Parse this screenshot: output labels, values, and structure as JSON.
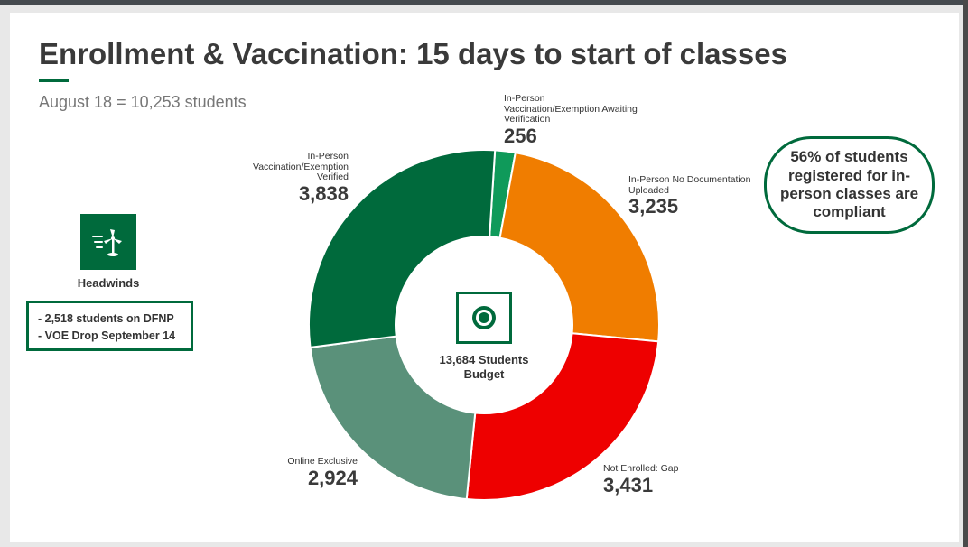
{
  "title": "Enrollment & Vaccination: 15 days to start of classes",
  "subtitle": "August 18 = 10,253 students",
  "headwinds": {
    "label": "Headwinds",
    "icon": "wind-turbine-icon",
    "items": [
      "- 2,518 students on DFNP",
      "- VOE Drop September 14"
    ]
  },
  "callout": "56% of students registered for in-person classes are compliant",
  "center": {
    "icon": "target-icon",
    "text": "13,684 Students Budget"
  },
  "colors": {
    "brand": "#006a3c",
    "verified": "#006a3c",
    "awaiting": "#0f9a5a",
    "no_docs": "#f07d00",
    "not_enrolled": "#ee0000",
    "online": "#5a917a"
  },
  "chart_data": {
    "type": "pie",
    "title": "",
    "center_label": "13,684 Students Budget",
    "slices": [
      {
        "label": "In-Person Vaccination/Exemption Awaiting Verification",
        "value": 256,
        "display": "256"
      },
      {
        "label": "In-Person No Documentation Uploaded",
        "value": 3235,
        "display": "3,235"
      },
      {
        "label": "Not Enrolled: Gap",
        "value": 3431,
        "display": "3,431"
      },
      {
        "label": "Online Exclusive",
        "value": 2924,
        "display": "2,924"
      },
      {
        "label": "In-Person Vaccination/Exemption Verified",
        "value": 3838,
        "display": "3,838"
      }
    ]
  }
}
